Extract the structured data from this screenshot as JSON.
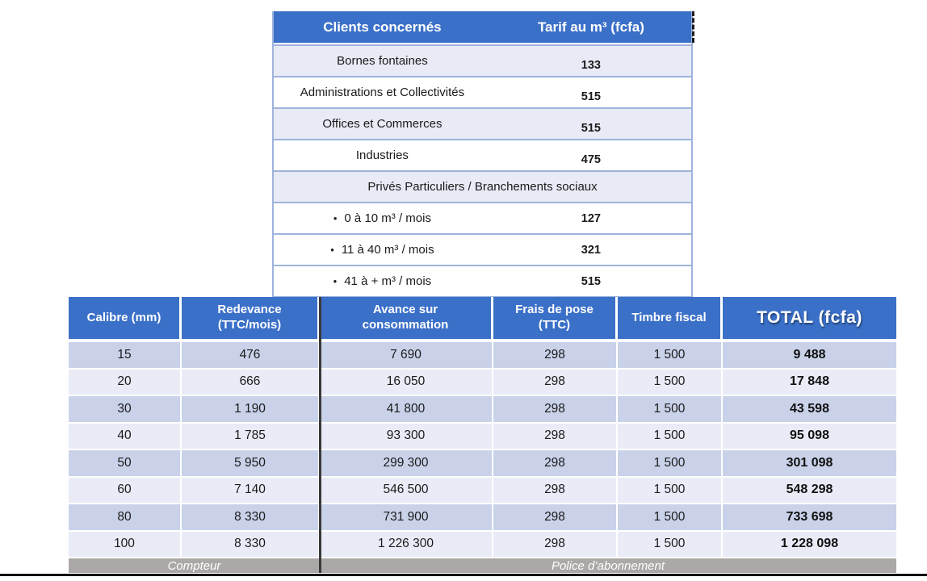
{
  "tariff_table": {
    "header": {
      "clients": "Clients concernés",
      "tarif": "Tarif au m³ (fcfa)"
    },
    "bullet_char": "•",
    "rows": [
      {
        "label": "Bornes fontaines",
        "value": "133"
      },
      {
        "label": "Administrations et Collectivités",
        "value": "515"
      },
      {
        "label": "Offices et Commerces",
        "value": "515"
      },
      {
        "label": "Industries",
        "value": "475"
      },
      {
        "label": "Privés Particuliers / Branchements sociaux",
        "value": ""
      },
      {
        "label": "0 à 10 m³ / mois",
        "value": "127"
      },
      {
        "label": "11 à 40 m³ / mois",
        "value": "321"
      },
      {
        "label": "41 à + m³ / mois",
        "value": "515"
      }
    ]
  },
  "subscription_table": {
    "headers": [
      "Calibre (mm)",
      "Redevance\n(TTC/mois)",
      "Avance sur\nconsommation",
      "Frais de pose\n(TTC)",
      "Timbre fiscal",
      "TOTAL (fcfa)"
    ],
    "rows": [
      [
        "15",
        "476",
        "7 690",
        "298",
        "1 500",
        "9 488"
      ],
      [
        "20",
        "666",
        "16 050",
        "298",
        "1 500",
        "17 848"
      ],
      [
        "30",
        "1 190",
        "41 800",
        "298",
        "1 500",
        "43 598"
      ],
      [
        "40",
        "1 785",
        "93 300",
        "298",
        "1 500",
        "95 098"
      ],
      [
        "50",
        "5 950",
        "299 300",
        "298",
        "1 500",
        "301 098"
      ],
      [
        "60",
        "7 140",
        "546 500",
        "298",
        "1 500",
        "548 298"
      ],
      [
        "80",
        "8 330",
        "731 900",
        "298",
        "1 500",
        "733 698"
      ],
      [
        "100",
        "8 330",
        "1 226 300",
        "298",
        "1 500",
        "1 228 098"
      ]
    ],
    "footer": {
      "compteur": "Compteur",
      "police": "Police d’abonnement"
    }
  },
  "colors": {
    "header_blue": "#3b70c8",
    "row_lavender": "#e8ebf6",
    "row_dark": "#c9d2e9",
    "row_light": "#e9ebf6",
    "footer_gray": "#aba8a7",
    "border_blue": "#9fb3db",
    "divider_dark": "#3a3a3a"
  },
  "chart_data": [
    {
      "type": "table",
      "title": "Tarifs au m³ par type de client",
      "columns": [
        "Clients concernés",
        "Tarif au m³ (fcfa)"
      ],
      "rows": [
        [
          "Bornes fontaines",
          133
        ],
        [
          "Administrations et Collectivités",
          515
        ],
        [
          "Offices et Commerces",
          515
        ],
        [
          "Industries",
          475
        ],
        [
          "Privés Particuliers / Branchements sociaux",
          null
        ],
        [
          "0 à 10 m³ / mois",
          127
        ],
        [
          "11 à 40 m³ / mois",
          321
        ],
        [
          "41 à + m³ / mois",
          515
        ]
      ]
    },
    {
      "type": "table",
      "title": "Coûts d'abonnement par calibre de compteur",
      "columns": [
        "Calibre (mm)",
        "Redevance (TTC/mois)",
        "Avance sur consommation",
        "Frais de pose (TTC)",
        "Timbre fiscal",
        "TOTAL (fcfa)"
      ],
      "rows": [
        [
          15,
          476,
          7690,
          298,
          1500,
          9488
        ],
        [
          20,
          666,
          16050,
          298,
          1500,
          17848
        ],
        [
          30,
          1190,
          41800,
          298,
          1500,
          43598
        ],
        [
          40,
          1785,
          93300,
          298,
          1500,
          95098
        ],
        [
          50,
          5950,
          299300,
          298,
          1500,
          301098
        ],
        [
          60,
          7140,
          546500,
          298,
          1500,
          548298
        ],
        [
          80,
          8330,
          731900,
          298,
          1500,
          733698
        ],
        [
          100,
          8330,
          1226300,
          298,
          1500,
          1228098
        ]
      ],
      "footer_groups": [
        "Compteur",
        "Police d’abonnement"
      ]
    }
  ]
}
